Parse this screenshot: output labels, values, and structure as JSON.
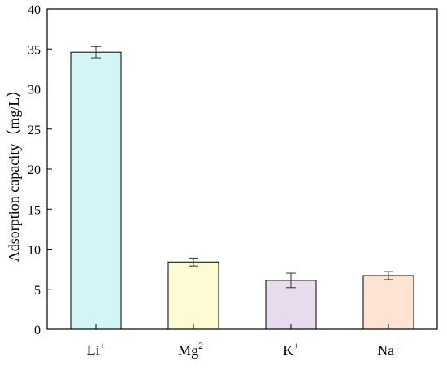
{
  "chart_data": {
    "type": "bar",
    "title": "",
    "xlabel": "",
    "ylabel": "Adsorption capacity（mg/L）",
    "ylim": [
      0,
      40
    ],
    "yticks": [
      0,
      5,
      10,
      15,
      20,
      25,
      30,
      35,
      40
    ],
    "grid": false,
    "legend": "none",
    "categories": [
      {
        "base": "Li",
        "sup": "+"
      },
      {
        "base": "Mg",
        "sup": "2+"
      },
      {
        "base": "K",
        "sup": "+"
      },
      {
        "base": "Na",
        "sup": "+"
      }
    ],
    "values": [
      34.6,
      8.4,
      6.1,
      6.7
    ],
    "errors": [
      0.7,
      0.5,
      0.9,
      0.5
    ],
    "colors": [
      "#d4f5f5",
      "#fcfbd3",
      "#e6dcee",
      "#fde4d2"
    ]
  }
}
